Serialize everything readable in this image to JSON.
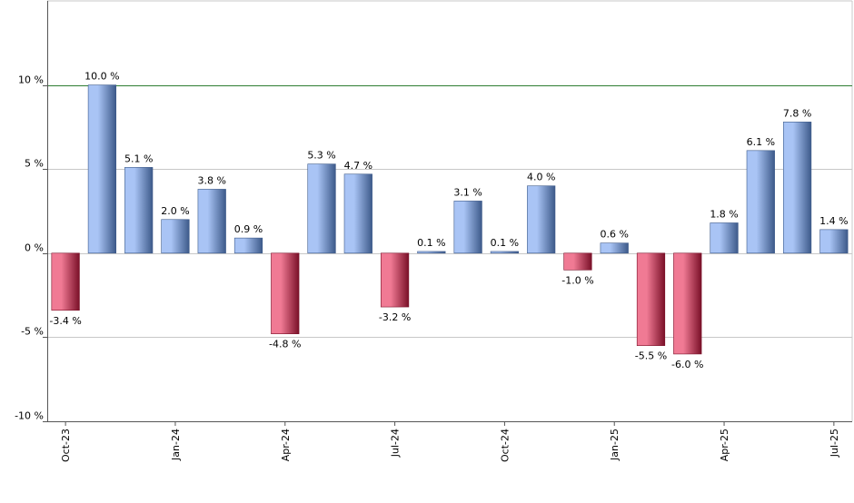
{
  "chart_data": {
    "type": "bar",
    "title": "",
    "xlabel": "",
    "ylabel": "",
    "ylim": [
      -10,
      15
    ],
    "yticks": [
      {
        "value": 10,
        "label": "10 %"
      },
      {
        "value": 5,
        "label": "5 %"
      },
      {
        "value": 0,
        "label": "0 %"
      },
      {
        "value": -5,
        "label": "-5 %"
      },
      {
        "value": -10,
        "label": "-10 %"
      }
    ],
    "reference_line": {
      "value": 10,
      "color": "#2e7d32"
    },
    "categories": [
      "Oct-23",
      "Nov-23",
      "Dec-23",
      "Jan-24",
      "Feb-24",
      "Mar-24",
      "Apr-24",
      "May-24",
      "Jun-24",
      "Jul-24",
      "Aug-24",
      "Sep-24",
      "Oct-24",
      "Nov-24",
      "Dec-24",
      "Jan-25",
      "Feb-25",
      "Mar-25",
      "Apr-25",
      "May-25",
      "Jun-25",
      "Jul-25"
    ],
    "values": [
      -3.4,
      10.0,
      5.1,
      2.0,
      3.8,
      0.9,
      -4.8,
      5.3,
      4.7,
      -3.2,
      0.1,
      3.1,
      0.1,
      4.0,
      -1.0,
      0.6,
      -5.5,
      -6.0,
      1.8,
      6.1,
      7.8,
      1.4
    ],
    "value_labels": [
      "-3.4 %",
      "10.0 %",
      "5.1 %",
      "2.0 %",
      "3.8 %",
      "0.9 %",
      "-4.8 %",
      "5.3 %",
      "4.7 %",
      "-3.2 %",
      "0.1 %",
      "3.1 %",
      "0.1 %",
      "4.0 %",
      "-1.0 %",
      "0.6 %",
      "-5.5 %",
      "-6.0 %",
      "1.8 %",
      "6.1 %",
      "7.8 %",
      "1.4 %"
    ],
    "x_tick_labels": [
      {
        "index": 0,
        "label": "Oct-23"
      },
      {
        "index": 3,
        "label": "Jan-24"
      },
      {
        "index": 6,
        "label": "Apr-24"
      },
      {
        "index": 9,
        "label": "Jul-24"
      },
      {
        "index": 12,
        "label": "Oct-24"
      },
      {
        "index": 15,
        "label": "Jan-25"
      },
      {
        "index": 18,
        "label": "Apr-25"
      },
      {
        "index": 21,
        "label": "Jul-25"
      }
    ],
    "colors": {
      "positive_light": "#a9c4f5",
      "positive_dark": "#3d5a8a",
      "negative_light": "#f07a94",
      "negative_dark": "#7a1028",
      "grid": "#c8c8c8",
      "axis": "#555555"
    },
    "grid": true,
    "legend": "none"
  }
}
